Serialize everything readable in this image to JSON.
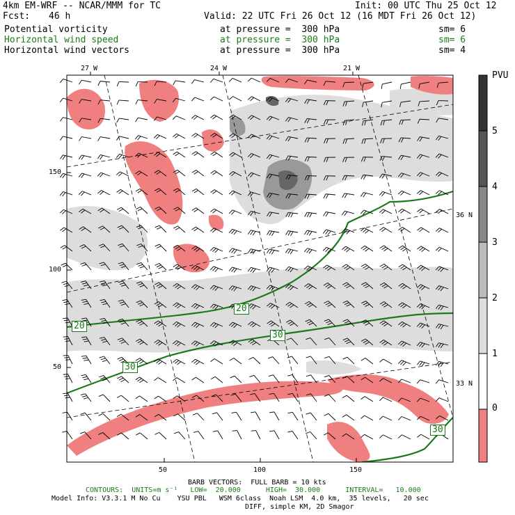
{
  "header": {
    "model_line": "4km EM-WRF -- NCAR/MMM for TC",
    "init": "Init: 00 UTC Thu 25 Oct 12",
    "fcst_label": "Fcst:",
    "fcst_value": "46 h",
    "valid": "Valid: 22 UTC Fri 26 Oct 12 (16 MDT Fri 26 Oct 12)"
  },
  "fields": [
    {
      "name": "Potential vorticity",
      "level": "at pressure =  300 hPa",
      "sm": "sm= 6",
      "color": "#000000"
    },
    {
      "name": "Horizontal wind speed",
      "level": "at pressure =  300 hPa",
      "sm": "sm= 6",
      "color": "#1a7a1a"
    },
    {
      "name": "Horizontal wind vectors",
      "level": "at pressure =  300 hPa",
      "sm": "sm= 4",
      "color": "#000000"
    }
  ],
  "map": {
    "lon_labels": [
      "27 W",
      "24 W",
      "21 W"
    ],
    "lat_labels": [
      "36 N",
      "33 N"
    ],
    "x_ticks": [
      "50",
      "100",
      "150"
    ],
    "y_ticks": [
      "150",
      "100",
      "50"
    ],
    "contour_labels": [
      "20",
      "20",
      "30",
      "30",
      "30"
    ],
    "contour_color": "#1a7a1a",
    "shade_colors": {
      "negative": "#f08080",
      "0_1": "#ffffff",
      "1_2": "#dddddd",
      "2_3": "#999999",
      "3_4": "#777777",
      "4_5": "#555555",
      "5_up": "#333333"
    }
  },
  "legend": {
    "title": "PVU",
    "ticks": [
      "5",
      "4",
      "3",
      "2",
      "1",
      "0"
    ]
  },
  "footer": {
    "barb": "BARB VECTORS:  FULL BARB = 10 kts",
    "contours": "CONTOURS:  UNITS=m s⁻¹   LOW=  20.000      HIGH=  30.000      INTERVAL=   10.000",
    "model_info": "Model Info: V3.3.1 M No Cu    YSU PBL   WSM 6class  Noah LSM  4.0 km,  35 levels,   20 sec",
    "diff": "DIFF, simple KM, 2D Smagor"
  }
}
